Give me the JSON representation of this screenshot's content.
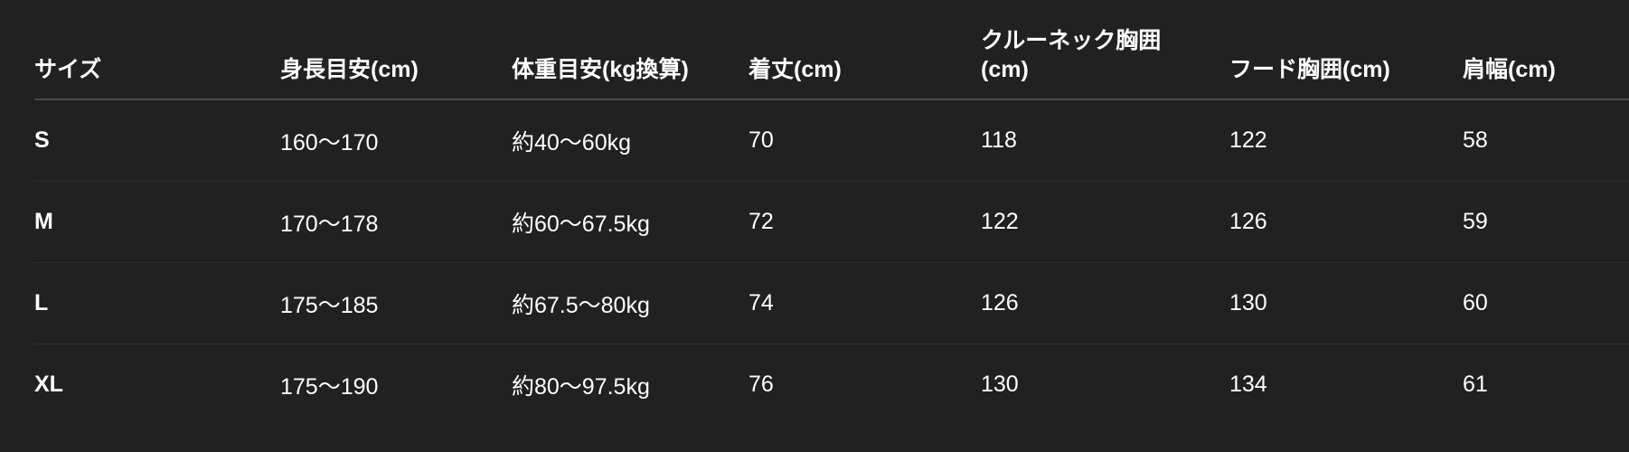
{
  "headers": [
    "サイズ",
    "身長目安(cm)",
    "体重目安(kg換算)",
    "着丈(cm)",
    "クルーネック胸囲(cm)",
    "フード胸囲(cm)",
    "肩幅(cm)"
  ],
  "rows": [
    [
      "S",
      "160〜170",
      "約40〜60kg",
      "70",
      "118",
      "122",
      "58"
    ],
    [
      "M",
      "170〜178",
      "約60〜67.5kg",
      "72",
      "122",
      "126",
      "59"
    ],
    [
      "L",
      "175〜185",
      "約67.5〜80kg",
      "74",
      "126",
      "130",
      "60"
    ],
    [
      "XL",
      "175〜190",
      "約80〜97.5kg",
      "76",
      "130",
      "134",
      "61"
    ]
  ],
  "colors": {
    "background": "#212121",
    "text": "#ffffff",
    "header_rule": "#4b4b4b",
    "row_rule": "#2f2f2f"
  }
}
